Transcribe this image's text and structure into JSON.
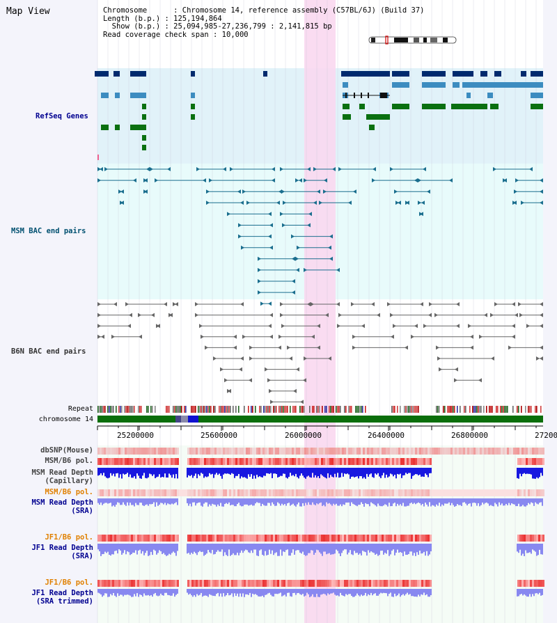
{
  "app": {
    "title": "Map View"
  },
  "header": {
    "chromosome_line": "Chromosome      : Chromosome 14, reference assembly (C57BL/6J) (Build 37)",
    "length_line": "Length (b.p.) : 125,194,864",
    "show_line": "  Show (b.p.) : 25,094,985-27,236,799 : 2,141,815 bp",
    "coverage_line": "Read coverage check span : 10,000"
  },
  "tracks": {
    "refseq": "RefSeq Genes",
    "msm_bac": "MSM BAC end pairs",
    "b6n_bac": "B6N BAC end pairs",
    "repeat": "Repeat",
    "chromosome": "chromosome 14",
    "dbsnp": "dbSNP(Mouse)",
    "msm_b6_pol": "MSM/B6 pol.",
    "msm_read_cap_1": "MSM Read Depth",
    "msm_read_cap_2": "(Capillary)",
    "msm_b6_pol2": "MSM/B6 pol.",
    "msm_read_sra_1": "MSM Read Depth",
    "msm_read_sra_2": "(SRA)",
    "jf1_b6_pol": "JF1/B6 pol.",
    "jf1_read_sra_1": "JF1 Read Depth",
    "jf1_read_sra_2": "(SRA)",
    "jf1_b6_pol2": "JF1/B6 pol.",
    "jf1_read_trim_1": "JF1 Read Depth",
    "jf1_read_trim_2": "(SRA trimmed)"
  },
  "axis": {
    "ticks": [
      "25200000",
      "25600000",
      "26000000",
      "26400000",
      "26800000",
      "27200"
    ]
  },
  "colors": {
    "highlight": "#f9d8f0",
    "refseq_bg": "#dcf0f8",
    "msm_bg": "#e4fafa",
    "gene_navy": "#002a6e",
    "gene_blue": "#3c8cc0",
    "gene_green": "#0a7010",
    "msm_line": "#1a6e8e",
    "b6n_line": "#666666",
    "chrom_green": "#0a6e0a",
    "pol_red": "#f04848",
    "depth_blue": "#1818e0",
    "depth_light": "#8888f0",
    "label_navy": "#000090",
    "label_teal": "#005070",
    "label_orange": "#e08000"
  }
}
